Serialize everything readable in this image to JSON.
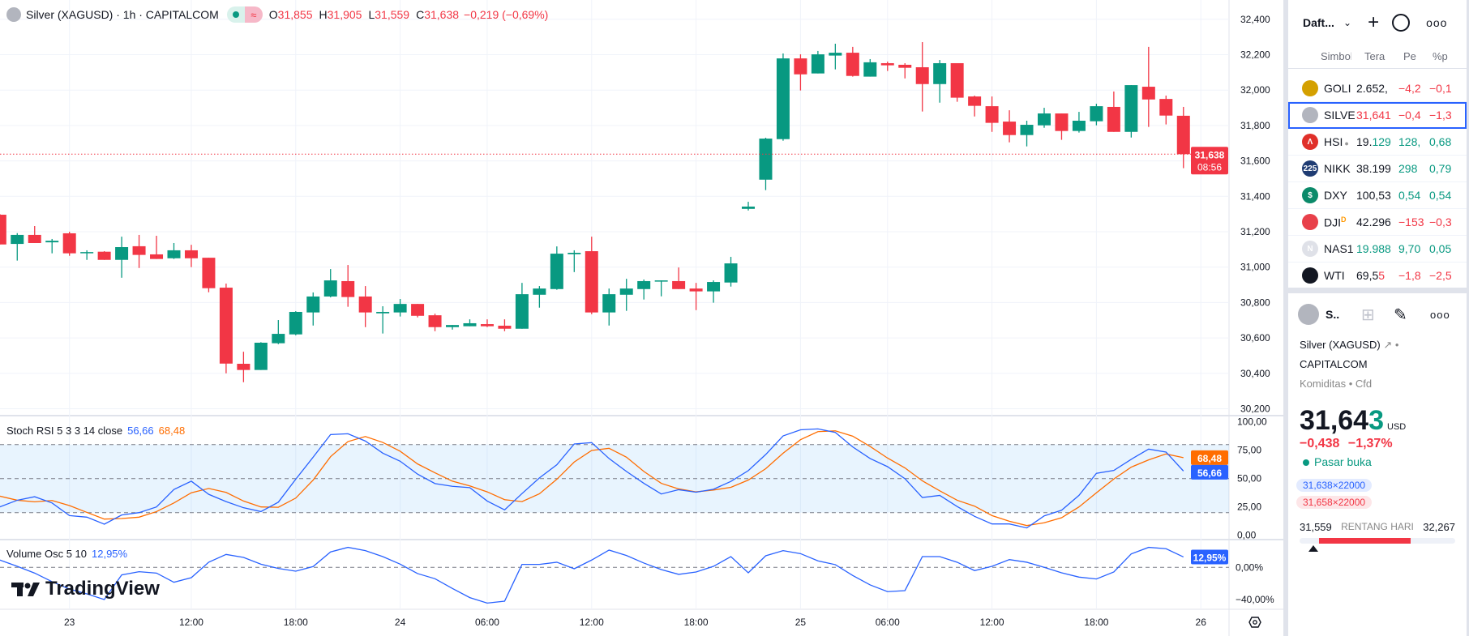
{
  "header": {
    "symbol_title": "Silver (XAGUSD) · 1h · CAPITALCOM",
    "wave_badge": "≈",
    "ohlc": {
      "o_label": "O",
      "o": "31,855",
      "h_label": "H",
      "h": "31,905",
      "l_label": "L",
      "l": "31,559",
      "c_label": "C",
      "c": "31,638",
      "change": "−0,219 (−0,69%)"
    }
  },
  "colors": {
    "up": "#089981",
    "down": "#f23645",
    "stoch_k": "#2962ff",
    "stoch_d": "#ff6d00",
    "vol": "#2962ff",
    "accent": "#2962ff"
  },
  "price_axis": {
    "labels": [
      "32,400",
      "32,200",
      "32,000",
      "31,800",
      "31,600",
      "31,400",
      "31,200",
      "31,000",
      "30,800",
      "30,600",
      "30,400",
      "30,200"
    ],
    "current_price": "31,638",
    "countdown": "08:56"
  },
  "stoch": {
    "legend": "Stoch RSI 5 3 3 14 close",
    "k_value": "56,66",
    "d_value": "68,48",
    "axis": [
      "100,00",
      "75,00",
      "50,00",
      "25,00",
      "0,00"
    ]
  },
  "volosc": {
    "legend": "Volume Osc 5 10",
    "value": "12,95%",
    "axis": [
      "0,00%",
      "−40,00%"
    ]
  },
  "time_axis": [
    "23",
    "12:00",
    "18:00",
    "24",
    "06:00",
    "12:00",
    "18:00",
    "25",
    "06:00",
    "12:00",
    "18:00",
    "26"
  ],
  "logo": "TradingView",
  "chart_data": {
    "type": "candlestick",
    "timeframe": "1h",
    "ylim": [
      30200,
      32400
    ],
    "ohlc": [
      [
        31296,
        31300,
        31128,
        31128
      ],
      [
        31131,
        31192,
        31037,
        31182
      ],
      [
        31182,
        31232,
        31136,
        31136
      ],
      [
        31140,
        31159,
        31078,
        31149
      ],
      [
        31191,
        31200,
        31064,
        31078
      ],
      [
        31082,
        31095,
        31041,
        31085
      ],
      [
        31087,
        31090,
        31041,
        31041
      ],
      [
        31041,
        31172,
        30940,
        31113
      ],
      [
        31118,
        31182,
        30995,
        31069
      ],
      [
        31072,
        31177,
        31046,
        31046
      ],
      [
        31050,
        31136,
        31046,
        31095
      ],
      [
        31095,
        31126,
        31000,
        31050
      ],
      [
        31053,
        31053,
        30858,
        30881
      ],
      [
        30884,
        30907,
        30400,
        30455
      ],
      [
        30454,
        30522,
        30350,
        30419
      ],
      [
        30419,
        30576,
        30419,
        30573
      ],
      [
        30570,
        30701,
        30565,
        30623
      ],
      [
        30620,
        30751,
        30615,
        30747
      ],
      [
        30744,
        30857,
        30670,
        30834
      ],
      [
        30834,
        30989,
        30829,
        30925
      ],
      [
        30921,
        31012,
        30776,
        30831
      ],
      [
        30834,
        30893,
        30661,
        30744
      ],
      [
        30739,
        30779,
        30625,
        30747
      ],
      [
        30744,
        30820,
        30721,
        30792
      ],
      [
        30792,
        30792,
        30716,
        30725
      ],
      [
        30728,
        30737,
        30638,
        30661
      ],
      [
        30661,
        30673,
        30647,
        30673
      ],
      [
        30666,
        30705,
        30666,
        30683
      ],
      [
        30678,
        30705,
        30661,
        30666
      ],
      [
        30669,
        30705,
        30638,
        30652
      ],
      [
        30652,
        30911,
        30652,
        30847
      ],
      [
        30844,
        30893,
        30771,
        30879
      ],
      [
        30876,
        31117,
        30872,
        31076
      ],
      [
        31073,
        31095,
        30972,
        31081
      ],
      [
        31090,
        31172,
        30734,
        30744
      ],
      [
        30744,
        30879,
        30670,
        30847
      ],
      [
        30844,
        30934,
        30753,
        30879
      ],
      [
        30876,
        30930,
        30817,
        30921
      ],
      [
        30918,
        30925,
        30835,
        30925
      ],
      [
        30921,
        30998,
        30876,
        30876
      ],
      [
        30879,
        30911,
        30757,
        30863
      ],
      [
        30863,
        30925,
        30799,
        30916
      ],
      [
        30913,
        31058,
        30890,
        31021
      ],
      [
        31329,
        31369,
        31320,
        31342
      ],
      [
        31494,
        31731,
        31435,
        31726
      ],
      [
        31723,
        32207,
        31714,
        32179
      ],
      [
        32179,
        32202,
        31998,
        32089
      ],
      [
        32094,
        32221,
        32094,
        32202
      ],
      [
        32195,
        32262,
        32117,
        32211
      ],
      [
        32211,
        32244,
        32076,
        32080
      ],
      [
        32076,
        32175,
        32076,
        32157
      ],
      [
        32152,
        32161,
        32108,
        32140
      ],
      [
        32143,
        32152,
        32066,
        32126
      ],
      [
        32129,
        32271,
        31879,
        32034
      ],
      [
        32034,
        32170,
        31929,
        32152
      ],
      [
        32152,
        32152,
        31934,
        31957
      ],
      [
        31964,
        31969,
        31851,
        31911
      ],
      [
        31909,
        31964,
        31764,
        31815
      ],
      [
        31822,
        31886,
        31705,
        31746
      ],
      [
        31746,
        31827,
        31682,
        31804
      ],
      [
        31801,
        31900,
        31787,
        31868
      ],
      [
        31868,
        31868,
        31719,
        31769
      ],
      [
        31769,
        31877,
        31760,
        31827
      ],
      [
        31824,
        31923,
        31801,
        31909
      ],
      [
        31905,
        31992,
        31764,
        31764
      ],
      [
        31764,
        32028,
        31732,
        32028
      ],
      [
        32019,
        32244,
        31792,
        31947
      ],
      [
        31950,
        31969,
        31806,
        31856
      ],
      [
        31855,
        31905,
        31559,
        31638
      ]
    ],
    "stoch_k": [
      25.0,
      30.9,
      34.0,
      28.5,
      17.4,
      16.0,
      9.8,
      17.9,
      20.0,
      25.0,
      40.4,
      47.7,
      36.1,
      29.7,
      24.3,
      20.9,
      29.2,
      49.4,
      68.9,
      88.8,
      89.5,
      83.1,
      72.4,
      65.3,
      53.9,
      45.6,
      43.2,
      42.0,
      30.2,
      22.4,
      36.8,
      50.6,
      62.2,
      80.5,
      81.7,
      67.7,
      56.3,
      45.8,
      36.4,
      40.2,
      38.0,
      40.6,
      47.5,
      57.0,
      71.2,
      87.6,
      93.0,
      93.8,
      90.7,
      77.9,
      67.7,
      60.5,
      49.9,
      33.3,
      35.2,
      25.4,
      16.7,
      10.0,
      10.0,
      6.5,
      17.1,
      22.1,
      35.2,
      54.6,
      57.2,
      67.0,
      76.0,
      73.4,
      56.66
    ],
    "stoch_d": [
      34.5,
      30.9,
      29.5,
      30.7,
      26.2,
      20.2,
      14.3,
      14.8,
      16.0,
      20.9,
      28.5,
      37.5,
      41.3,
      37.8,
      30.2,
      25.0,
      24.7,
      32.8,
      48.7,
      69.3,
      82.6,
      87.1,
      81.9,
      74.1,
      62.9,
      55.1,
      47.7,
      43.5,
      38.3,
      31.4,
      29.7,
      36.6,
      49.4,
      64.6,
      74.8,
      76.7,
      68.9,
      56.3,
      45.8,
      40.9,
      38.3,
      39.9,
      42.3,
      48.7,
      58.7,
      72.4,
      84.3,
      91.4,
      92.1,
      87.4,
      78.3,
      68.1,
      59.4,
      48.0,
      39.2,
      30.9,
      25.7,
      17.4,
      12.4,
      8.6,
      11.0,
      15.5,
      25.0,
      37.5,
      49.6,
      60.1,
      66.5,
      71.7,
      68.48
    ],
    "stoch_levels": [
      80,
      50,
      20
    ],
    "volume_osc": [
      9.1,
      1.3,
      -7.1,
      -17.8,
      -27,
      -33,
      -40,
      -9.4,
      -5.4,
      -7.1,
      -18.5,
      -12.8,
      6.4,
      16.1,
      12.4,
      4.0,
      -1.3,
      -4.7,
      1.0,
      19.2,
      24.9,
      20.8,
      13.4,
      4.0,
      -7.7,
      -14.1,
      -26.2,
      -37.6,
      -44.4,
      -42.0,
      3.7,
      3.7,
      6.4,
      -1.7,
      9.1,
      21.5,
      14.8,
      5.4,
      -2.7,
      -8.7,
      -5.7,
      1.3,
      13.4,
      -6.7,
      14.4,
      20.8,
      17.1,
      8.1,
      3.4,
      -10.1,
      -21.8,
      -30.2,
      -28.9,
      13.4,
      13.4,
      6.4,
      -4.0,
      1.3,
      9.7,
      6.4,
      0,
      -6.7,
      -12.1,
      -14.4,
      -5.7,
      16.8,
      24.9,
      23.2,
      12.95
    ],
    "grid": true
  },
  "watchlist": {
    "title": "Daft...",
    "columns": [
      "Simbol",
      "Tera",
      "Pe",
      "%p"
    ],
    "items": [
      {
        "icon": "gold-bars-icon",
        "color": "#d4a000",
        "glyph": "",
        "symbol": "GOLI",
        "price": "2.652,",
        "tail": "",
        "chg": "−4,2",
        "pct": "−0,1",
        "dir": "down"
      },
      {
        "icon": "silver-bars-icon",
        "color": "#b2b5be",
        "glyph": "",
        "symbol": "SILVE",
        "price": "31,641",
        "tail": "",
        "chg": "−0,4",
        "pct": "−1,3",
        "dir": "down",
        "price_colored": true,
        "selected": true
      },
      {
        "icon": "hsi-icon",
        "color": "#e0302a",
        "glyph": "Λ",
        "symbol": "HSI",
        "price": "19.",
        "tail": "129",
        "chg": "128,",
        "pct": "0,68",
        "dir": "up",
        "dot": "●"
      },
      {
        "icon": "nikkei-icon",
        "color": "#1f3c73",
        "glyph": "225",
        "symbol": "NIKK",
        "price": "38.199",
        "tail": "",
        "chg": "298",
        "pct": "0,79",
        "dir": "up"
      },
      {
        "icon": "dollar-icon",
        "color": "#0b8a6a",
        "glyph": "$",
        "symbol": "DXY",
        "price": "100,53",
        "tail": "",
        "chg": "0,54",
        "pct": "0,54",
        "dir": "up"
      },
      {
        "icon": "us-flag-icon",
        "color": "#e8404a",
        "glyph": "",
        "symbol": "DJI",
        "price": "42.296",
        "tail": "",
        "chg": "−153",
        "pct": "−0,3",
        "dir": "down",
        "sup": "D"
      },
      {
        "icon": "nasdaq-icon",
        "color": "#dfe1e8",
        "glyph": "N",
        "symbol": "NAS1",
        "price": "19.988",
        "tail": "",
        "chg": "9,70",
        "pct": "0,05",
        "dir": "up",
        "price_colored": true
      },
      {
        "icon": "oil-drop-icon",
        "color": "#131722",
        "glyph": "",
        "symbol": "WTI",
        "price": "69,5",
        "tail": "5",
        "chg": "−1,8",
        "pct": "−2,5",
        "dir": "down"
      }
    ]
  },
  "details": {
    "short": "S..",
    "name": "Silver (XAGUSD)",
    "exchange": "CAPITALCOM",
    "category": "Komiditas",
    "type": "Cfd",
    "price_main": "31,64",
    "price_tail": "3",
    "currency": "USD",
    "change": "−0,438",
    "change_pct": "−1,37%",
    "status": "Pasar buka",
    "bid": "31,638×22000",
    "ask": "31,658×22000",
    "range_low": "31,559",
    "range_label": "RENTANG HARI",
    "range_high": "32,267",
    "range_position": 0.09
  }
}
